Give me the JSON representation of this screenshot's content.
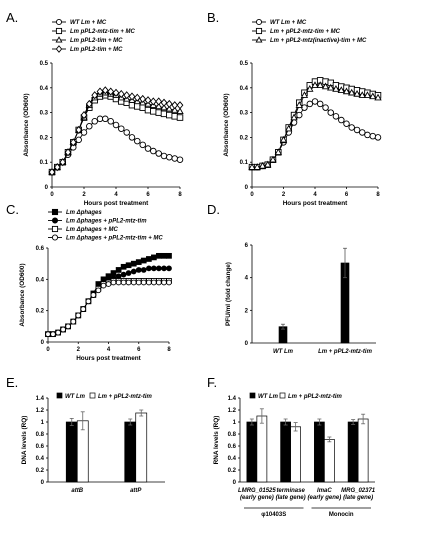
{
  "chart_data": [
    {
      "panel": "A.",
      "type": "line",
      "xlabel": "Hours post treatment",
      "ylabel": "Absorbance (OD600)",
      "xlim": [
        0,
        8
      ],
      "ylim": [
        0,
        0.5
      ],
      "xticks": [
        "0",
        "2",
        "4",
        "6",
        "8"
      ],
      "yticks": [
        "0",
        "0.1",
        "0.2",
        "0.3",
        "0.4",
        "0.5"
      ],
      "legend_position": "top-left",
      "series": [
        {
          "name": "WT Lm + MC",
          "marker": "circle-open",
          "x": [
            0,
            0.33,
            0.67,
            1,
            1.33,
            1.67,
            2,
            2.33,
            2.67,
            3,
            3.33,
            3.67,
            4,
            4.33,
            4.67,
            5,
            5.33,
            5.67,
            6,
            6.33,
            6.67,
            7,
            7.33,
            7.67,
            8
          ],
          "y": [
            0.06,
            0.08,
            0.1,
            0.13,
            0.16,
            0.19,
            0.22,
            0.245,
            0.265,
            0.275,
            0.275,
            0.265,
            0.25,
            0.235,
            0.22,
            0.2,
            0.185,
            0.17,
            0.155,
            0.145,
            0.135,
            0.125,
            0.12,
            0.115,
            0.11
          ]
        },
        {
          "name": "Lm pPL2-mtz-tim + MC",
          "marker": "square-open",
          "x": [
            0,
            0.33,
            0.67,
            1,
            1.33,
            1.67,
            2,
            2.33,
            2.67,
            3,
            3.33,
            3.67,
            4,
            4.33,
            4.67,
            5,
            5.33,
            5.67,
            6,
            6.33,
            6.67,
            7,
            7.33,
            7.67,
            8
          ],
          "y": [
            0.06,
            0.08,
            0.1,
            0.14,
            0.18,
            0.23,
            0.28,
            0.32,
            0.35,
            0.365,
            0.37,
            0.365,
            0.355,
            0.345,
            0.34,
            0.33,
            0.325,
            0.32,
            0.31,
            0.305,
            0.3,
            0.295,
            0.29,
            0.285,
            0.28
          ]
        },
        {
          "name": "Lm pPL2-tim + MC",
          "marker": "triangle-open",
          "x": [
            0,
            0.33,
            0.67,
            1,
            1.33,
            1.67,
            2,
            2.33,
            2.67,
            3,
            3.33,
            3.67,
            4,
            4.33,
            4.67,
            5,
            5.33,
            5.67,
            6,
            6.33,
            6.67,
            7,
            7.33,
            7.67,
            8
          ],
          "y": [
            0.06,
            0.08,
            0.1,
            0.14,
            0.18,
            0.23,
            0.28,
            0.33,
            0.36,
            0.375,
            0.38,
            0.375,
            0.37,
            0.36,
            0.355,
            0.35,
            0.345,
            0.34,
            0.335,
            0.33,
            0.325,
            0.32,
            0.315,
            0.31,
            0.305
          ]
        },
        {
          "name": "Lm pPL2-tim + MC",
          "marker": "diamond-open",
          "x": [
            0,
            0.33,
            0.67,
            1,
            1.33,
            1.67,
            2,
            2.33,
            2.67,
            3,
            3.33,
            3.67,
            4,
            4.33,
            4.67,
            5,
            5.33,
            5.67,
            6,
            6.33,
            6.67,
            7,
            7.33,
            7.67,
            8
          ],
          "y": [
            0.06,
            0.08,
            0.1,
            0.14,
            0.18,
            0.23,
            0.29,
            0.335,
            0.37,
            0.385,
            0.39,
            0.385,
            0.38,
            0.375,
            0.37,
            0.365,
            0.36,
            0.355,
            0.35,
            0.345,
            0.345,
            0.34,
            0.335,
            0.33,
            0.33
          ]
        }
      ]
    },
    {
      "panel": "B.",
      "type": "line",
      "xlabel": "Hours post treatment",
      "ylabel": "Absorbance (OD600)",
      "xlim": [
        0,
        8
      ],
      "ylim": [
        0,
        0.5
      ],
      "xticks": [
        "0",
        "2",
        "4",
        "6",
        "8"
      ],
      "yticks": [
        "0",
        "0.1",
        "0.2",
        "0.3",
        "0.4",
        "0.5"
      ],
      "legend_position": "top-left",
      "series": [
        {
          "name": "WT Lm + MC",
          "marker": "circle-open",
          "x": [
            0,
            0.33,
            0.67,
            1,
            1.33,
            1.67,
            2,
            2.33,
            2.67,
            3,
            3.33,
            3.67,
            4,
            4.33,
            4.67,
            5,
            5.33,
            5.67,
            6,
            6.33,
            6.67,
            7,
            7.33,
            7.67,
            8
          ],
          "y": [
            0.08,
            0.08,
            0.085,
            0.09,
            0.11,
            0.14,
            0.18,
            0.22,
            0.26,
            0.29,
            0.32,
            0.335,
            0.345,
            0.335,
            0.32,
            0.3,
            0.285,
            0.27,
            0.255,
            0.24,
            0.23,
            0.22,
            0.21,
            0.205,
            0.2
          ]
        },
        {
          "name": "Lm + pPL2-mtz-tim + MC",
          "marker": "square-open",
          "x": [
            0,
            0.33,
            0.67,
            1,
            1.33,
            1.67,
            2,
            2.33,
            2.67,
            3,
            3.33,
            3.67,
            4,
            4.33,
            4.67,
            5,
            5.33,
            5.67,
            6,
            6.33,
            6.67,
            7,
            7.33,
            7.67,
            8
          ],
          "y": [
            0.08,
            0.08,
            0.085,
            0.09,
            0.11,
            0.14,
            0.19,
            0.24,
            0.29,
            0.34,
            0.38,
            0.41,
            0.425,
            0.43,
            0.425,
            0.42,
            0.41,
            0.405,
            0.4,
            0.395,
            0.39,
            0.385,
            0.38,
            0.375,
            0.37
          ]
        },
        {
          "name": "Lm + pPL2-mtz(inactive)-tim + MC",
          "marker": "triangle-open",
          "x": [
            0,
            0.33,
            0.67,
            1,
            1.33,
            1.67,
            2,
            2.33,
            2.67,
            3,
            3.33,
            3.67,
            4,
            4.33,
            4.67,
            5,
            5.33,
            5.67,
            6,
            6.33,
            6.67,
            7,
            7.33,
            7.67,
            8
          ],
          "y": [
            0.08,
            0.08,
            0.085,
            0.09,
            0.11,
            0.14,
            0.19,
            0.235,
            0.28,
            0.33,
            0.37,
            0.395,
            0.41,
            0.41,
            0.405,
            0.4,
            0.395,
            0.39,
            0.385,
            0.38,
            0.375,
            0.37,
            0.37,
            0.365,
            0.36
          ]
        }
      ]
    },
    {
      "panel": "C.",
      "type": "line",
      "xlabel": "Hours post treatment",
      "ylabel": "Absorbance (OD600)",
      "xlim": [
        0,
        8
      ],
      "ylim": [
        0,
        0.6
      ],
      "xticks": [
        "0",
        "2",
        "4",
        "6",
        "8"
      ],
      "yticks": [
        "0",
        "0.2",
        "0.4",
        "0.6"
      ],
      "legend_position": "top-left",
      "series": [
        {
          "name": "Lm Δphages",
          "marker": "square-filled",
          "x": [
            0,
            0.33,
            0.67,
            1,
            1.33,
            1.67,
            2,
            2.33,
            2.67,
            3,
            3.33,
            3.67,
            4,
            4.33,
            4.67,
            5,
            5.33,
            5.67,
            6,
            6.33,
            6.67,
            7,
            7.33,
            7.67,
            8
          ],
          "y": [
            0.05,
            0.05,
            0.06,
            0.08,
            0.1,
            0.13,
            0.17,
            0.21,
            0.26,
            0.31,
            0.37,
            0.4,
            0.42,
            0.44,
            0.46,
            0.48,
            0.49,
            0.5,
            0.51,
            0.52,
            0.53,
            0.54,
            0.55,
            0.55,
            0.55
          ]
        },
        {
          "name": "Lm Δphages + pPL2-mtz-tim",
          "marker": "circle-filled",
          "x": [
            0,
            0.33,
            0.67,
            1,
            1.33,
            1.67,
            2,
            2.33,
            2.67,
            3,
            3.33,
            3.67,
            4,
            4.33,
            4.67,
            5,
            5.33,
            5.67,
            6,
            6.33,
            6.67,
            7,
            7.33,
            7.67,
            8
          ],
          "y": [
            0.05,
            0.05,
            0.06,
            0.08,
            0.1,
            0.13,
            0.17,
            0.21,
            0.26,
            0.3,
            0.35,
            0.38,
            0.4,
            0.41,
            0.42,
            0.43,
            0.44,
            0.45,
            0.46,
            0.46,
            0.47,
            0.47,
            0.47,
            0.47,
            0.47
          ]
        },
        {
          "name": "Lm Δphages + MC",
          "marker": "square-open",
          "x": [
            0,
            0.33,
            0.67,
            1,
            1.33,
            1.67,
            2,
            2.33,
            2.67,
            3,
            3.33,
            3.67,
            4,
            4.33,
            4.67,
            5,
            5.33,
            5.67,
            6,
            6.33,
            6.67,
            7,
            7.33,
            7.67,
            8
          ],
          "y": [
            0.05,
            0.05,
            0.06,
            0.08,
            0.1,
            0.13,
            0.17,
            0.21,
            0.26,
            0.3,
            0.34,
            0.37,
            0.38,
            0.39,
            0.39,
            0.39,
            0.39,
            0.39,
            0.39,
            0.39,
            0.39,
            0.39,
            0.39,
            0.39,
            0.39
          ]
        },
        {
          "name": "Lm Δphages + pPL2-mtz-tim + MC",
          "marker": "circle-open",
          "x": [
            0,
            0.33,
            0.67,
            1,
            1.33,
            1.67,
            2,
            2.33,
            2.67,
            3,
            3.33,
            3.67,
            4,
            4.33,
            4.67,
            5,
            5.33,
            5.67,
            6,
            6.33,
            6.67,
            7,
            7.33,
            7.67,
            8
          ],
          "y": [
            0.05,
            0.05,
            0.06,
            0.08,
            0.1,
            0.13,
            0.17,
            0.21,
            0.26,
            0.3,
            0.33,
            0.36,
            0.37,
            0.38,
            0.38,
            0.38,
            0.38,
            0.38,
            0.38,
            0.38,
            0.38,
            0.38,
            0.38,
            0.38,
            0.38
          ]
        }
      ]
    },
    {
      "panel": "D.",
      "type": "bar",
      "ylabel": "PFU/ml (fold change)",
      "ylim": [
        0,
        6
      ],
      "yticks": [
        "0",
        "2",
        "4",
        "6"
      ],
      "categories": [
        "WT Lm",
        "Lm + pPL2-mtz-tim"
      ],
      "values": [
        1,
        4.9
      ],
      "errors": [
        0.15,
        0.9
      ]
    },
    {
      "panel": "E.",
      "type": "bar",
      "ylabel": "DNA levels (RQ)",
      "ylim": [
        0,
        1.4
      ],
      "yticks": [
        "0",
        "0.2",
        "0.4",
        "0.6",
        "0.8",
        "1",
        "1.2",
        "1.4"
      ],
      "categories": [
        "attB",
        "attP"
      ],
      "legend_position": "top-left",
      "series": [
        {
          "name": "WT Lm",
          "color": "#000000",
          "values": [
            1.0,
            1.0
          ],
          "errors": [
            0.06,
            0.05
          ]
        },
        {
          "name": "Lm + pPL2-mtz-tim",
          "color": "#ffffff",
          "values": [
            1.02,
            1.15
          ],
          "errors": [
            0.15,
            0.05
          ]
        }
      ]
    },
    {
      "panel": "F.",
      "type": "bar",
      "ylabel": "RNA levels (RQ)",
      "ylim": [
        0,
        1.4
      ],
      "yticks": [
        "0",
        "0.2",
        "0.4",
        "0.6",
        "0.8",
        "1",
        "1.2",
        "1.4"
      ],
      "categories": [
        [
          "LMRG_01525",
          "(early gene)"
        ],
        [
          "terminase",
          "(late gene)"
        ],
        [
          "lmaC",
          "(early gene)"
        ],
        [
          "MRG_02371",
          "(late gene)"
        ]
      ],
      "groups": [
        {
          "label": "φ10403S",
          "span": [
            0,
            1
          ]
        },
        {
          "label": "Monocin",
          "span": [
            2,
            3
          ]
        }
      ],
      "legend_position": "top-left",
      "series": [
        {
          "name": "WT Lm",
          "color": "#000000",
          "values": [
            1.0,
            1.0,
            1.0,
            1.0
          ],
          "errors": [
            0.05,
            0.05,
            0.05,
            0.04
          ]
        },
        {
          "name": "Lm + pPL2-mtz-tim",
          "color": "#ffffff",
          "values": [
            1.1,
            0.92,
            0.71,
            1.05
          ],
          "errors": [
            0.12,
            0.07,
            0.04,
            0.08
          ]
        }
      ]
    }
  ]
}
